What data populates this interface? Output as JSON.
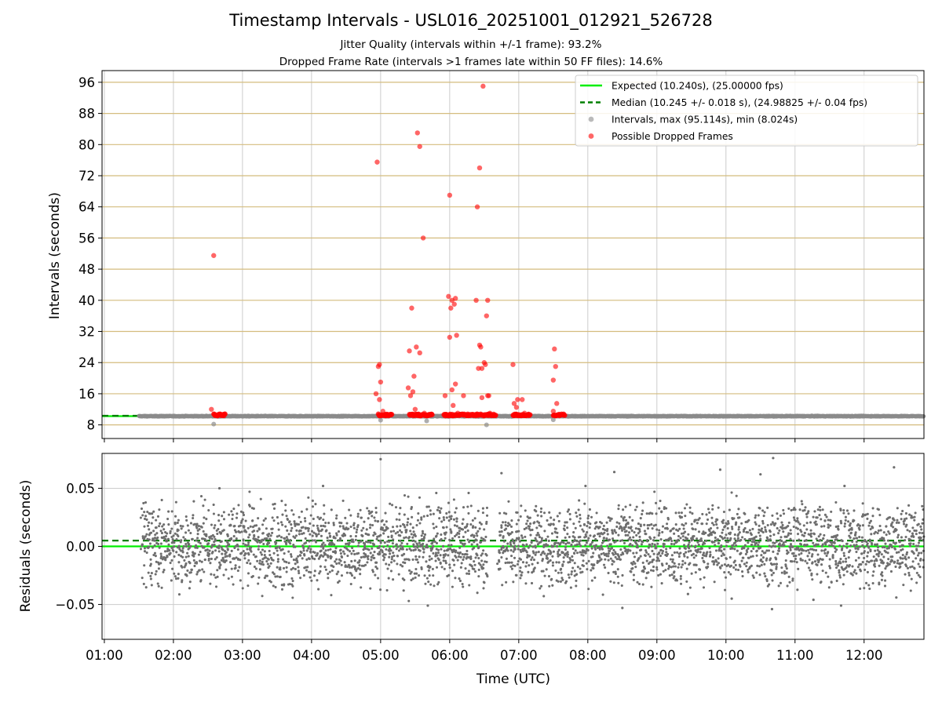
{
  "header": {
    "title": "Timestamp Intervals - USL016_20251001_012921_526728",
    "subtitle_1": "Jitter Quality (intervals within +/-1 frame): 93.2%",
    "subtitle_2": "Dropped Frame Rate (intervals >1 frames late within 50 FF files): 14.6%"
  },
  "colors": {
    "expected": "#00ee00",
    "median": "#007f00",
    "intervals": "#8c8c8c",
    "dropped": "#ff0000",
    "residuals": "#6e6e6e",
    "yGrid": "#d4bc7e",
    "xGrid": "#cccccc"
  },
  "chart_data": [
    {
      "type": "scatter",
      "ylabel": "Intervals (seconds)",
      "ylim": [
        4.5,
        99
      ],
      "yticks": [
        8,
        16,
        24,
        32,
        40,
        48,
        56,
        64,
        72,
        80,
        88,
        96
      ],
      "xlim": [
        "00:58",
        "12:52"
      ],
      "xticks": [
        "01:00",
        "02:00",
        "03:00",
        "04:00",
        "05:00",
        "06:00",
        "07:00",
        "08:00",
        "09:00",
        "10:00",
        "11:00",
        "12:00"
      ],
      "grid": true,
      "legend_position": "top-right",
      "expected": {
        "label": "Expected (10.240s), (25.00000 fps)",
        "value": 10.24
      },
      "median": {
        "label": "Median (10.245 +/- 0.018 s), (24.98825 +/- 0.04 fps)",
        "value": 10.245
      },
      "intervals": {
        "label": "Intervals, max (95.114s), min (8.024s)",
        "baseline": 10.24,
        "start": "01:30",
        "end": "12:52",
        "outliers": [
          [
            "02:35",
            8.2
          ],
          [
            "05:00",
            9.2
          ],
          [
            "05:40",
            9.0
          ],
          [
            "06:32",
            8.0
          ],
          [
            "07:30",
            9.3
          ]
        ]
      },
      "dropped": {
        "label": "Possible Dropped Frames",
        "runs": [
          [
            "02:35",
            "02:45"
          ],
          [
            "04:58",
            "05:10"
          ],
          [
            "05:25",
            "05:45"
          ],
          [
            "05:55",
            "06:40"
          ],
          [
            "06:55",
            "07:10"
          ],
          [
            "07:30",
            "07:40"
          ]
        ],
        "points": [
          [
            "02:35",
            51.5
          ],
          [
            "02:33",
            12.0
          ],
          [
            "04:57",
            75.5
          ],
          [
            "04:56",
            16.0
          ],
          [
            "04:58",
            23.0
          ],
          [
            "04:59",
            23.5
          ],
          [
            "05:00",
            19.0
          ],
          [
            "04:59",
            14.5
          ],
          [
            "05:02",
            11.5
          ],
          [
            "05:24",
            17.5
          ],
          [
            "05:25",
            27.0
          ],
          [
            "05:26",
            15.5
          ],
          [
            "05:27",
            38.0
          ],
          [
            "05:28",
            16.5
          ],
          [
            "05:29",
            20.5
          ],
          [
            "05:30",
            12.0
          ],
          [
            "05:31",
            28.0
          ],
          [
            "05:32",
            83.0
          ],
          [
            "05:34",
            79.5
          ],
          [
            "05:34",
            26.5
          ],
          [
            "05:37",
            56.0
          ],
          [
            "05:38",
            11.0
          ],
          [
            "05:56",
            15.5
          ],
          [
            "05:59",
            41.0
          ],
          [
            "06:00",
            67.0
          ],
          [
            "06:00",
            30.5
          ],
          [
            "06:01",
            38.0
          ],
          [
            "06:02",
            40.0
          ],
          [
            "06:02",
            17.0
          ],
          [
            "06:03",
            13.0
          ],
          [
            "06:04",
            39.0
          ],
          [
            "06:05",
            40.5
          ],
          [
            "06:05",
            18.5
          ],
          [
            "06:06",
            31.0
          ],
          [
            "06:07",
            11.0
          ],
          [
            "06:12",
            15.5
          ],
          [
            "06:23",
            40.0
          ],
          [
            "06:24",
            64.0
          ],
          [
            "06:25",
            22.5
          ],
          [
            "06:26",
            74.0
          ],
          [
            "06:26",
            28.5
          ],
          [
            "06:27",
            28.0
          ],
          [
            "06:28",
            15.0
          ],
          [
            "06:28",
            22.5
          ],
          [
            "06:29",
            95.0
          ],
          [
            "06:30",
            24.0
          ],
          [
            "06:31",
            23.5
          ],
          [
            "06:32",
            36.0
          ],
          [
            "06:33",
            40.0
          ],
          [
            "06:33",
            15.5
          ],
          [
            "06:34",
            15.5
          ],
          [
            "06:35",
            11.0
          ],
          [
            "06:55",
            23.5
          ],
          [
            "06:56",
            13.5
          ],
          [
            "06:58",
            12.5
          ],
          [
            "06:59",
            14.5
          ],
          [
            "07:03",
            14.5
          ],
          [
            "07:05",
            11.0
          ],
          [
            "07:30",
            19.5
          ],
          [
            "07:31",
            27.5
          ],
          [
            "07:32",
            23.0
          ],
          [
            "07:33",
            13.5
          ],
          [
            "07:30",
            11.5
          ]
        ]
      }
    },
    {
      "type": "scatter",
      "xlabel": "Time (UTC)",
      "ylabel": "Residuals (seconds)",
      "ylim": [
        -0.08,
        0.08
      ],
      "yticks": [
        -0.05,
        0.0,
        0.05
      ],
      "ytick_labels": [
        "−0.05",
        "0.00",
        "0.05"
      ],
      "grid": true,
      "expected_residual": 0.0,
      "median_residual": 0.005,
      "residuals": {
        "start": "01:32",
        "end": "12:52",
        "bands": [
          0.0,
          0.019,
          -0.018
        ],
        "spread": 0.01,
        "gaps": [
          [
            "05:12",
            "05:13"
          ],
          [
            "06:33",
            "06:42"
          ]
        ],
        "extremes": [
          [
            "05:00",
            0.075
          ],
          [
            "10:41",
            0.076
          ],
          [
            "12:26",
            0.068
          ],
          [
            "09:55",
            0.066
          ],
          [
            "10:30",
            0.062
          ],
          [
            "06:45",
            0.063
          ],
          [
            "08:23",
            0.064
          ],
          [
            "05:41",
            -0.051
          ],
          [
            "08:30",
            -0.053
          ],
          [
            "10:40",
            -0.054
          ],
          [
            "11:16",
            -0.046
          ],
          [
            "11:40",
            -0.051
          ],
          [
            "12:28",
            -0.044
          ],
          [
            "10:05",
            -0.045
          ],
          [
            "09:27",
            -0.041
          ],
          [
            "05:20",
            -0.038
          ],
          [
            "02:40",
            0.05
          ],
          [
            "04:10",
            0.052
          ],
          [
            "07:58",
            0.052
          ],
          [
            "11:43",
            0.052
          ]
        ]
      }
    }
  ]
}
